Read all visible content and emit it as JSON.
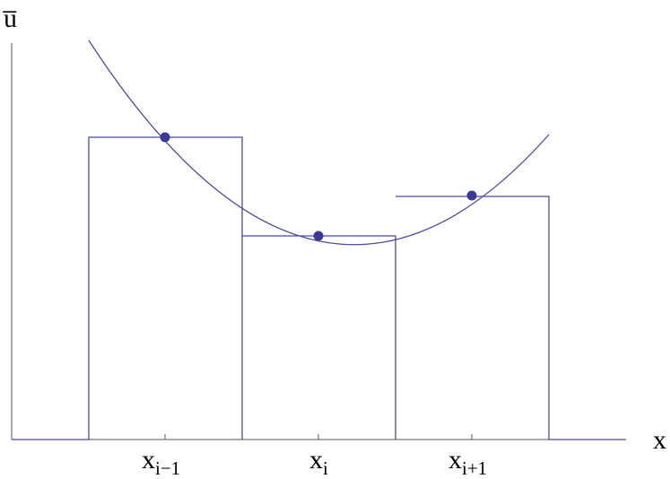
{
  "axes": {
    "y_label": "u̅",
    "x_label": "x"
  },
  "cells": [
    {
      "base": "x",
      "sub": "i−1"
    },
    {
      "base": "x",
      "sub": "i"
    },
    {
      "base": "x",
      "sub": "i+1"
    }
  ]
}
